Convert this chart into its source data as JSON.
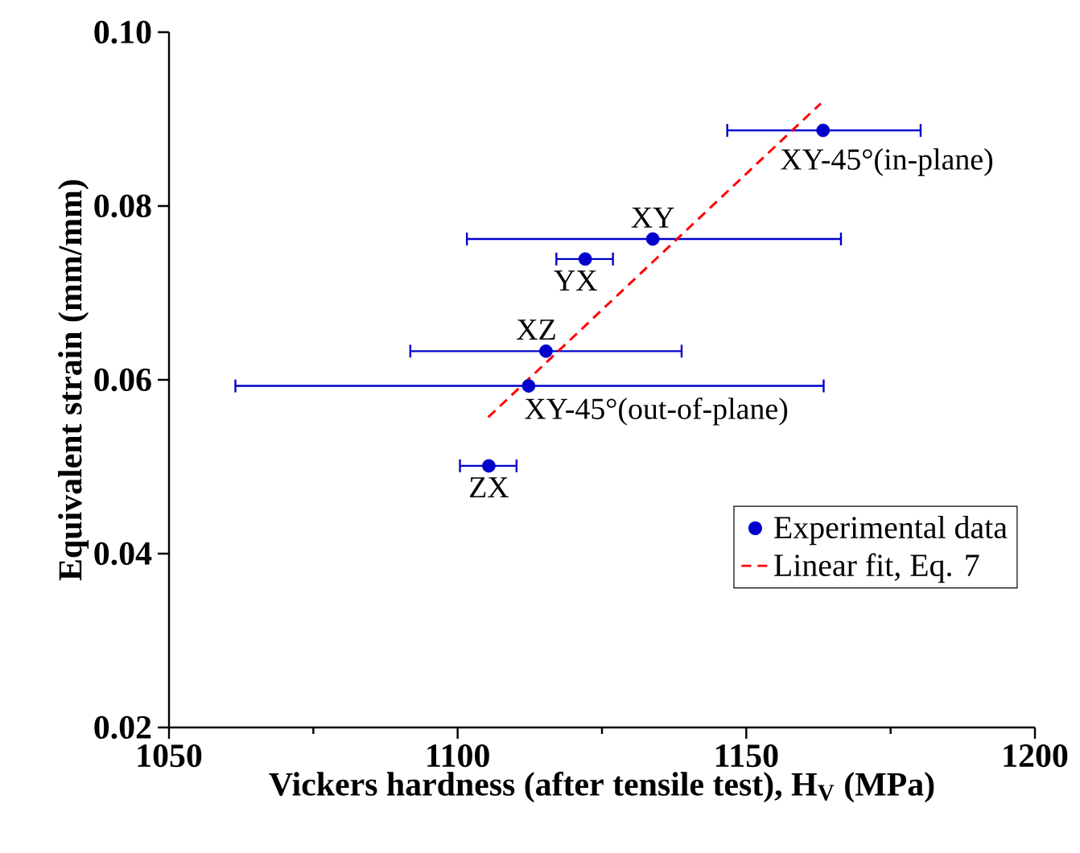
{
  "chart_data": {
    "type": "scatter",
    "xlabel": "Vickers hardness (after tensile test), H$_{V}$ (MPa)",
    "ylabel": "Equivalent strain (mm/mm)",
    "xlim": [
      1050,
      1200
    ],
    "ylim": [
      0.02,
      0.1
    ],
    "xticks": [
      1050,
      1100,
      1150,
      1200
    ],
    "yticks": [
      0.02,
      0.04,
      0.06,
      {
        "value": 0.1,
        "label": "0.10"
      },
      0.08
    ],
    "series": [
      {
        "name": "Experimental data",
        "type": "scatter",
        "color": "#0000cc",
        "marker": "circle",
        "x": [
          1163.3,
          1133.8,
          1122.1,
          1115.3,
          1112.3,
          1105.4
        ],
        "values": [
          0.0887,
          0.0762,
          0.0739,
          0.0633,
          0.0593,
          0.0501
        ],
        "xerrors": [
          [
            1146.7,
            1180.2
          ],
          [
            1101.6,
            1166.4
          ],
          [
            1117.1,
            1126.9
          ],
          [
            1091.8,
            1138.8
          ],
          [
            1061.5,
            1163.4
          ],
          [
            1100.4,
            1110.2
          ]
        ]
      },
      {
        "name": "Linear fit, Eq. 7",
        "type": "line",
        "color": "#ff0000",
        "line_style": "dashed",
        "marker": "none",
        "x": [
          1105.3,
          1162.9
        ],
        "values": [
          0.0557,
          0.0918
        ]
      }
    ],
    "annotations": [
      {
        "text": "XY-45°(in-plane)",
        "x": 1163.3,
        "y": 0.0887
      },
      {
        "text": "XY",
        "x": 1133.8,
        "y": 0.0762
      },
      {
        "text": "YX",
        "x": 1122.1,
        "y": 0.0739
      },
      {
        "text": "XZ",
        "x": 1115.3,
        "y": 0.0633
      },
      {
        "text": "XY-45°(out-of-plane)",
        "x": 1112.3,
        "y": 0.0593
      },
      {
        "text": "ZX",
        "x": 1105.4,
        "y": 0.0501
      }
    ],
    "legend": "bottom right",
    "grid": false
  }
}
